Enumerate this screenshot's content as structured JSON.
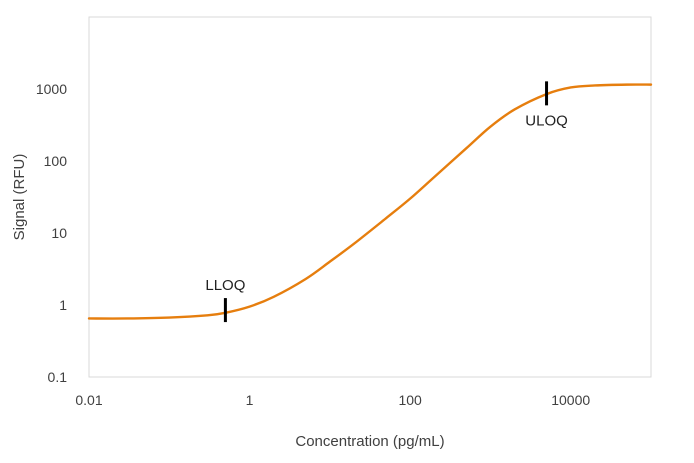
{
  "chart_data": {
    "type": "line",
    "title": "",
    "xlabel": "Concentration (pg/mL)",
    "ylabel": "Signal (RFU)",
    "x_scale": "log",
    "y_scale": "log",
    "xlim": [
      0.01,
      100000
    ],
    "ylim": [
      0.1,
      10000
    ],
    "x_ticks": [
      0.01,
      1,
      100,
      10000
    ],
    "x_tick_labels": [
      "0.01",
      "1",
      "100",
      "10000"
    ],
    "y_ticks": [
      0.1,
      1,
      10,
      100,
      1000
    ],
    "y_tick_labels": [
      "0.1",
      "1",
      "10",
      "100",
      "1000"
    ],
    "grid": false,
    "legend": "none",
    "series": [
      {
        "color": "#E67E0E",
        "x": [
          0.01,
          0.03,
          0.1,
          0.3,
          0.5,
          1,
          2,
          5,
          10,
          20,
          50,
          100,
          200,
          500,
          1000,
          2000,
          5000,
          10000,
          20000,
          50000,
          100000
        ],
        "y": [
          0.65,
          0.65,
          0.67,
          0.72,
          0.78,
          0.95,
          1.3,
          2.3,
          4.0,
          7.1,
          16,
          30,
          60,
          150,
          300,
          520,
          850,
          1050,
          1120,
          1150,
          1150
        ]
      }
    ],
    "annotations": [
      {
        "text": "LLOQ",
        "x": 0.5,
        "y": 0.85,
        "label_position": "above",
        "marker_color": "#000000"
      },
      {
        "text": "ULOQ",
        "x": 5000,
        "y": 870,
        "label_position": "below",
        "marker_color": "#000000"
      }
    ]
  }
}
